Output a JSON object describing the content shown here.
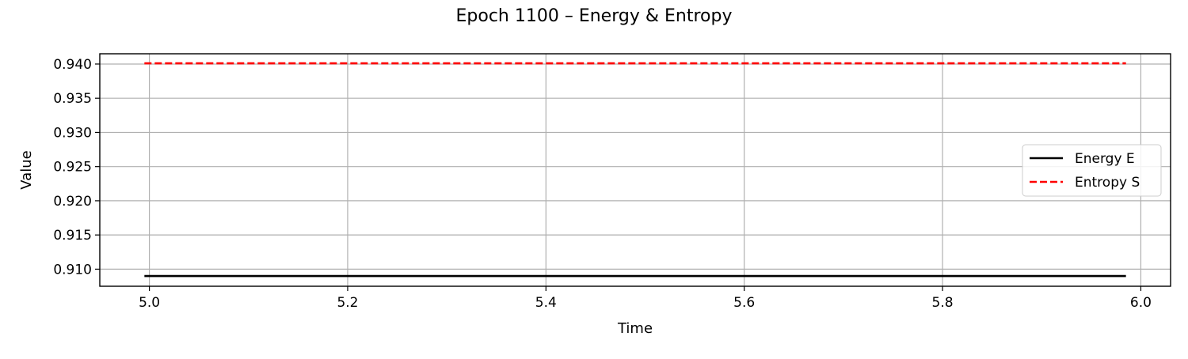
{
  "chart_data": {
    "type": "line",
    "title": "Epoch 1100 – Energy & Entropy",
    "xlabel": "Time",
    "ylabel": "Value",
    "xlim": [
      4.95,
      6.03
    ],
    "ylim": [
      0.9075,
      0.9415
    ],
    "xticks": [
      5.0,
      5.2,
      5.4,
      5.6,
      5.8,
      6.0
    ],
    "xtick_labels": [
      "5.0",
      "5.2",
      "5.4",
      "5.6",
      "5.8",
      "6.0"
    ],
    "yticks": [
      0.91,
      0.915,
      0.92,
      0.925,
      0.93,
      0.935,
      0.94
    ],
    "ytick_labels": [
      "0.910",
      "0.915",
      "0.920",
      "0.925",
      "0.930",
      "0.935",
      "0.940"
    ],
    "grid": true,
    "legend_position": "center-right",
    "series": [
      {
        "name": "Energy E",
        "color": "#000000",
        "style": "solid",
        "x": [
          4.995,
          5.2,
          5.4,
          5.6,
          5.8,
          5.985
        ],
        "y": [
          0.909,
          0.909,
          0.909,
          0.909,
          0.909,
          0.909
        ]
      },
      {
        "name": "Entropy S",
        "color": "#ff0000",
        "style": "dashed",
        "x": [
          4.995,
          5.2,
          5.4,
          5.6,
          5.8,
          5.985
        ],
        "y": [
          0.9401,
          0.9401,
          0.9401,
          0.9401,
          0.9401,
          0.9401
        ]
      }
    ]
  }
}
